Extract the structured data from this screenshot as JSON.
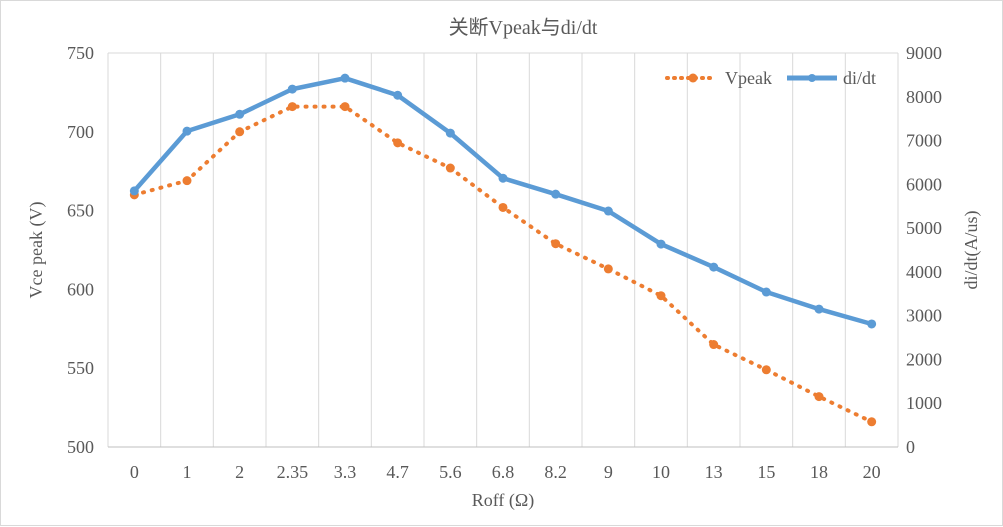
{
  "chart_data": {
    "type": "line",
    "title": "关断Vpeak与di/dt",
    "xlabel": "Roff (Ω)",
    "ylabel": "Vce peak (V)",
    "y2label": "di/dt(A/us)",
    "categories": [
      "0",
      "1",
      "2",
      "2.35",
      "3.3",
      "4.7",
      "5.6",
      "6.8",
      "8.2",
      "9",
      "10",
      "13",
      "15",
      "18",
      "20"
    ],
    "ylim": [
      500,
      750
    ],
    "yticks": [
      500,
      550,
      600,
      650,
      700,
      750
    ],
    "y2lim": [
      0,
      9000
    ],
    "y2ticks": [
      0,
      1000,
      2000,
      3000,
      4000,
      5000,
      6000,
      7000,
      8000,
      9000
    ],
    "grid": "vertical",
    "legend": "top-right",
    "series": [
      {
        "name": "Vpeak",
        "axis": "left",
        "style": "dotted",
        "color": "#ED7D31",
        "values": [
          660,
          669,
          700,
          716,
          716,
          693,
          677,
          652,
          629,
          613,
          596,
          565,
          549,
          532,
          516
        ]
      },
      {
        "name": "di/dt",
        "axis": "right",
        "style": "solid",
        "color": "#5B9BD5",
        "values": [
          5850,
          7215,
          7600,
          8175,
          8425,
          8035,
          7170,
          6140,
          5775,
          5390,
          4635,
          4110,
          3540,
          3150,
          2810
        ]
      }
    ]
  }
}
